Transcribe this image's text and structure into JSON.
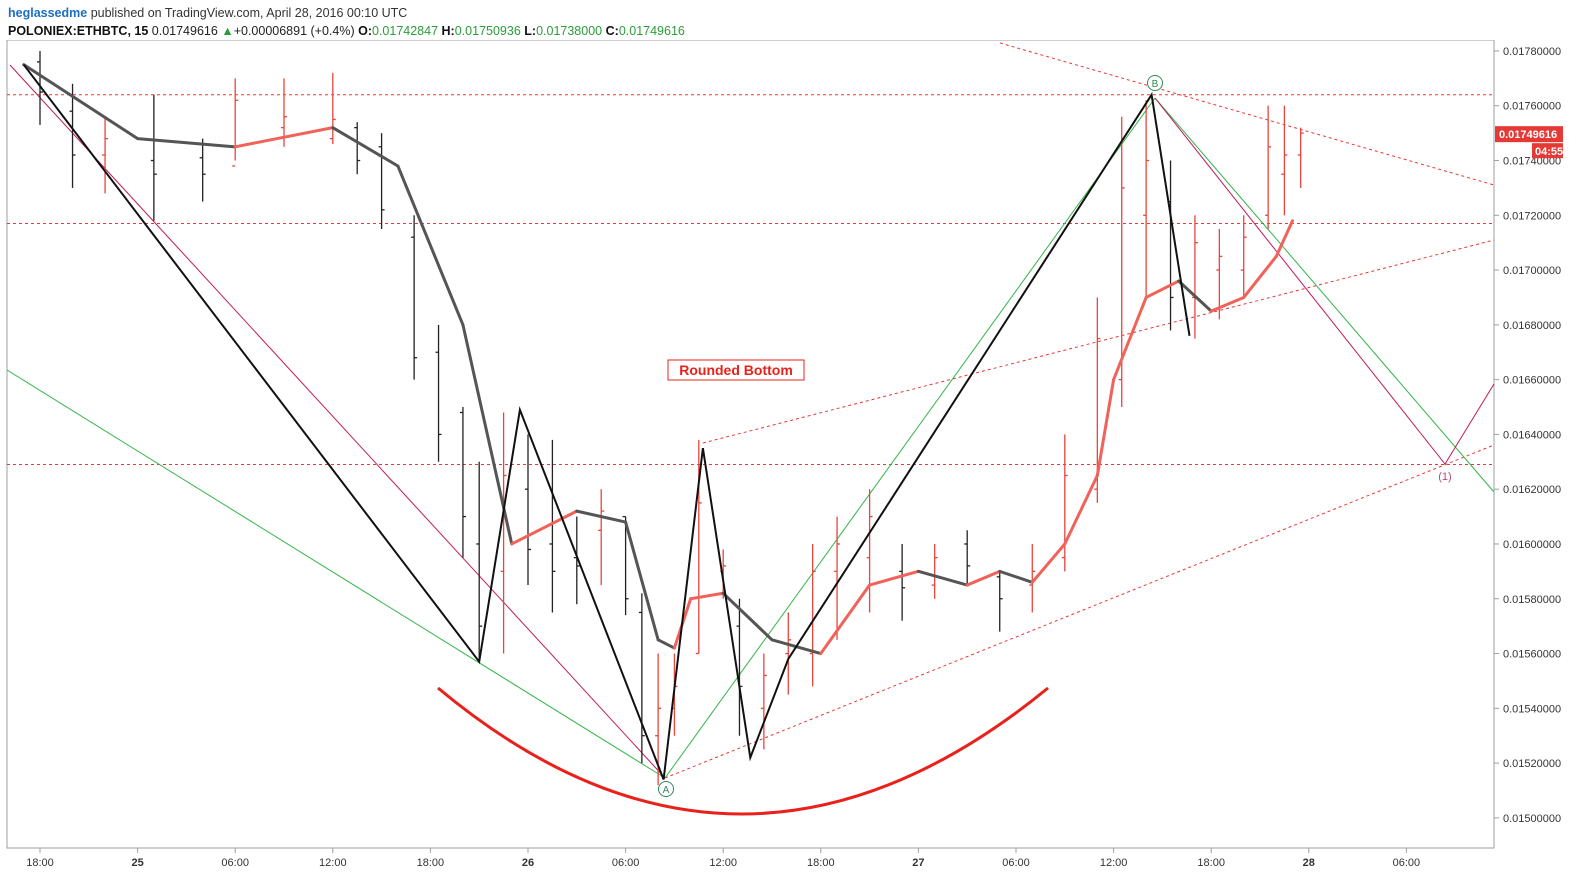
{
  "header": {
    "author": "heglassedme",
    "published_text": "published on TradingView.com, April 28, 2016 00:10 UTC",
    "symbol": "POLONIEX:ETHBTC, 15",
    "last_value": "0.01749616",
    "change_arrow": "▲",
    "change": "+0.00006891 (+0.4%)",
    "open_label": "O:",
    "open": "0.01742847",
    "high_label": "H:",
    "high": "0.01750936",
    "low_label": "L:",
    "low": "0.01738000",
    "close_label": "C:",
    "close": "0.01749616"
  },
  "chart_data": {
    "type": "line",
    "title": "",
    "xlabel": "",
    "ylabel": "",
    "ylim": [
      0.01489,
      0.01784
    ],
    "x_ticks": [
      "18:00",
      "25",
      "06:00",
      "12:00",
      "18:00",
      "26",
      "06:00",
      "12:00",
      "18:00",
      "27",
      "06:00",
      "12:00",
      "18:00",
      "28",
      "06:00"
    ],
    "y_ticks": [
      "0.01780000",
      "0.01760000",
      "0.01740000",
      "0.01720000",
      "0.01700000",
      "0.01680000",
      "0.01660000",
      "0.01640000",
      "0.01620000",
      "0.01600000",
      "0.01580000",
      "0.01560000",
      "0.01540000",
      "0.01520000",
      "0.01500000"
    ],
    "price_label": "0.01749616",
    "countdown_label": "04:55",
    "annotation": "Rounded Bottom",
    "point_labels": [
      "A",
      "B",
      "(1)"
    ],
    "horizontal_levels": [
      0.01764,
      0.01717,
      0.01629
    ],
    "colors": {
      "up": "#e8453c",
      "down": "#222222",
      "ma_down": "#555555",
      "ma_up": "#f0625a",
      "green": "#35b54a",
      "magenta": "#c2185b",
      "dotted_red": "#e53935",
      "arc": "#e8211b",
      "label_bg": "#e53935"
    },
    "series": [
      {
        "name": "",
        "x": [
          "04-24 17:00",
          "04-25 00:00",
          "04-25 06:00",
          "04-25 12:00",
          "04-25 16:00",
          "04-25 20:00",
          "04-25 23:00",
          "04-26 03:00",
          "04-26 06:00",
          "04-26 08:00",
          "04-26 09:00",
          "04-26 10:00",
          "04-26 12:00",
          "04-26 15:00",
          "04-26 18:00",
          "04-26 21:00",
          "04-27 00:00",
          "04-27 03:00",
          "04-27 05:00",
          "04-27 07:00",
          "04-27 09:00",
          "04-27 11:00",
          "04-27 12:00",
          "04-27 14:00",
          "04-27 16:00",
          "04-27 18:00",
          "04-27 20:00",
          "04-27 22:00",
          "04-27 23:00"
        ],
        "y": [
          0.01775,
          0.01748,
          0.01745,
          0.01752,
          0.01738,
          0.0168,
          0.016,
          0.01612,
          0.01608,
          0.01565,
          0.01562,
          0.0158,
          0.01582,
          0.01565,
          0.0156,
          0.01585,
          0.0159,
          0.01585,
          0.0159,
          0.01586,
          0.016,
          0.01625,
          0.0166,
          0.0169,
          0.01696,
          0.01685,
          0.0169,
          0.01705,
          0.01718
        ]
      }
    ],
    "bars": [
      {
        "x": "04-24 18:00",
        "o": 0.01776,
        "h": 0.0178,
        "l": 0.01753,
        "c": 0.01765
      },
      {
        "x": "04-24 20:00",
        "o": 0.01758,
        "h": 0.01768,
        "l": 0.0173,
        "c": 0.01742
      },
      {
        "x": "04-24 22:00",
        "o": 0.01742,
        "h": 0.01756,
        "l": 0.01728,
        "c": 0.01748
      },
      {
        "x": "04-25 01:00",
        "o": 0.0174,
        "h": 0.01764,
        "l": 0.01718,
        "c": 0.01735
      },
      {
        "x": "04-25 04:00",
        "o": 0.01741,
        "h": 0.01748,
        "l": 0.01725,
        "c": 0.01735
      },
      {
        "x": "04-25 06:00",
        "o": 0.01738,
        "h": 0.0177,
        "l": 0.0174,
        "c": 0.01762
      },
      {
        "x": "04-25 09:00",
        "o": 0.01752,
        "h": 0.0177,
        "l": 0.01745,
        "c": 0.01756
      },
      {
        "x": "04-25 12:00",
        "o": 0.01748,
        "h": 0.01772,
        "l": 0.01746,
        "c": 0.01755
      },
      {
        "x": "04-25 13:30",
        "o": 0.01752,
        "h": 0.01754,
        "l": 0.01735,
        "c": 0.0174
      },
      {
        "x": "04-25 15:00",
        "o": 0.01745,
        "h": 0.0175,
        "l": 0.01715,
        "c": 0.01722
      },
      {
        "x": "04-25 17:00",
        "o": 0.01712,
        "h": 0.0172,
        "l": 0.0166,
        "c": 0.01668
      },
      {
        "x": "04-25 18:30",
        "o": 0.0167,
        "h": 0.0168,
        "l": 0.0163,
        "c": 0.0164
      },
      {
        "x": "04-25 20:00",
        "o": 0.01648,
        "h": 0.0165,
        "l": 0.01595,
        "c": 0.0161
      },
      {
        "x": "04-25 21:00",
        "o": 0.016,
        "h": 0.0163,
        "l": 0.01557,
        "c": 0.0157
      },
      {
        "x": "04-25 22:30",
        "o": 0.0159,
        "h": 0.01648,
        "l": 0.0156,
        "c": 0.01625
      },
      {
        "x": "04-26 00:00",
        "o": 0.0162,
        "h": 0.0164,
        "l": 0.01585,
        "c": 0.01598
      },
      {
        "x": "04-26 01:30",
        "o": 0.016,
        "h": 0.01638,
        "l": 0.01575,
        "c": 0.0159
      },
      {
        "x": "04-26 03:00",
        "o": 0.01595,
        "h": 0.0161,
        "l": 0.01578,
        "c": 0.01592
      },
      {
        "x": "04-26 04:30",
        "o": 0.01605,
        "h": 0.0162,
        "l": 0.01585,
        "c": 0.01612
      },
      {
        "x": "04-26 06:00",
        "o": 0.0161,
        "h": 0.0161,
        "l": 0.01574,
        "c": 0.0158
      },
      {
        "x": "04-26 07:00",
        "o": 0.01575,
        "h": 0.01582,
        "l": 0.0152,
        "c": 0.0153
      },
      {
        "x": "04-26 08:00",
        "o": 0.0153,
        "h": 0.0156,
        "l": 0.01512,
        "c": 0.0154
      },
      {
        "x": "04-26 09:00",
        "o": 0.0154,
        "h": 0.0156,
        "l": 0.0153,
        "c": 0.01548
      },
      {
        "x": "04-26 10:30",
        "o": 0.0156,
        "h": 0.01638,
        "l": 0.0156,
        "c": 0.01615
      },
      {
        "x": "04-26 12:00",
        "o": 0.0159,
        "h": 0.01598,
        "l": 0.0158,
        "c": 0.01592
      },
      {
        "x": "04-26 13:00",
        "o": 0.0157,
        "h": 0.0158,
        "l": 0.0153,
        "c": 0.01548
      },
      {
        "x": "04-26 14:30",
        "o": 0.0154,
        "h": 0.0156,
        "l": 0.01525,
        "c": 0.01552
      },
      {
        "x": "04-26 16:00",
        "o": 0.0156,
        "h": 0.01575,
        "l": 0.01545,
        "c": 0.01565
      },
      {
        "x": "04-26 17:30",
        "o": 0.0156,
        "h": 0.016,
        "l": 0.01548,
        "c": 0.0159
      },
      {
        "x": "04-26 19:00",
        "o": 0.0159,
        "h": 0.0161,
        "l": 0.01565,
        "c": 0.016
      },
      {
        "x": "04-26 21:00",
        "o": 0.01595,
        "h": 0.0162,
        "l": 0.01575,
        "c": 0.0161
      },
      {
        "x": "04-26 23:00",
        "o": 0.0159,
        "h": 0.016,
        "l": 0.01572,
        "c": 0.01584
      },
      {
        "x": "04-27 01:00",
        "o": 0.01585,
        "h": 0.016,
        "l": 0.0158,
        "c": 0.01595
      },
      {
        "x": "04-27 03:00",
        "o": 0.016,
        "h": 0.01605,
        "l": 0.01585,
        "c": 0.01592
      },
      {
        "x": "04-27 05:00",
        "o": 0.01588,
        "h": 0.0159,
        "l": 0.01568,
        "c": 0.0158
      },
      {
        "x": "04-27 07:00",
        "o": 0.01585,
        "h": 0.016,
        "l": 0.01575,
        "c": 0.0159
      },
      {
        "x": "04-27 09:00",
        "o": 0.01595,
        "h": 0.0164,
        "l": 0.0159,
        "c": 0.01625
      },
      {
        "x": "04-27 11:00",
        "o": 0.0162,
        "h": 0.0169,
        "l": 0.01615,
        "c": 0.01675
      },
      {
        "x": "04-27 12:30",
        "o": 0.0166,
        "h": 0.01756,
        "l": 0.0165,
        "c": 0.0173
      },
      {
        "x": "04-27 14:00",
        "o": 0.0172,
        "h": 0.01762,
        "l": 0.0169,
        "c": 0.0174
      },
      {
        "x": "04-27 15:30",
        "o": 0.01725,
        "h": 0.0174,
        "l": 0.01678,
        "c": 0.0169
      },
      {
        "x": "04-27 17:00",
        "o": 0.0169,
        "h": 0.0172,
        "l": 0.01675,
        "c": 0.0171
      },
      {
        "x": "04-27 18:30",
        "o": 0.017,
        "h": 0.01715,
        "l": 0.01682,
        "c": 0.01705
      },
      {
        "x": "04-27 20:00",
        "o": 0.017,
        "h": 0.0172,
        "l": 0.0169,
        "c": 0.01712
      },
      {
        "x": "04-27 21:30",
        "o": 0.0172,
        "h": 0.0176,
        "l": 0.01715,
        "c": 0.01745
      },
      {
        "x": "04-27 22:30",
        "o": 0.01735,
        "h": 0.0176,
        "l": 0.0172,
        "c": 0.01742
      },
      {
        "x": "04-27 23:30",
        "o": 0.01742,
        "h": 0.01752,
        "l": 0.0173,
        "c": 0.0175
      }
    ],
    "pattern_lines": [
      {
        "name": "black-zigzag",
        "x": [
          "04-24 17:00",
          "04-25 21:00",
          "04-25 23:30",
          "04-26 08:20",
          "04-26 10:45",
          "04-26 13:40",
          "04-26 16:00",
          "04-27 14:20",
          "04-27 16:40"
        ],
        "y": [
          0.01775,
          0.01557,
          0.01649,
          0.01514,
          0.01635,
          0.01522,
          0.01558,
          0.01764,
          0.01676
        ]
      }
    ]
  }
}
